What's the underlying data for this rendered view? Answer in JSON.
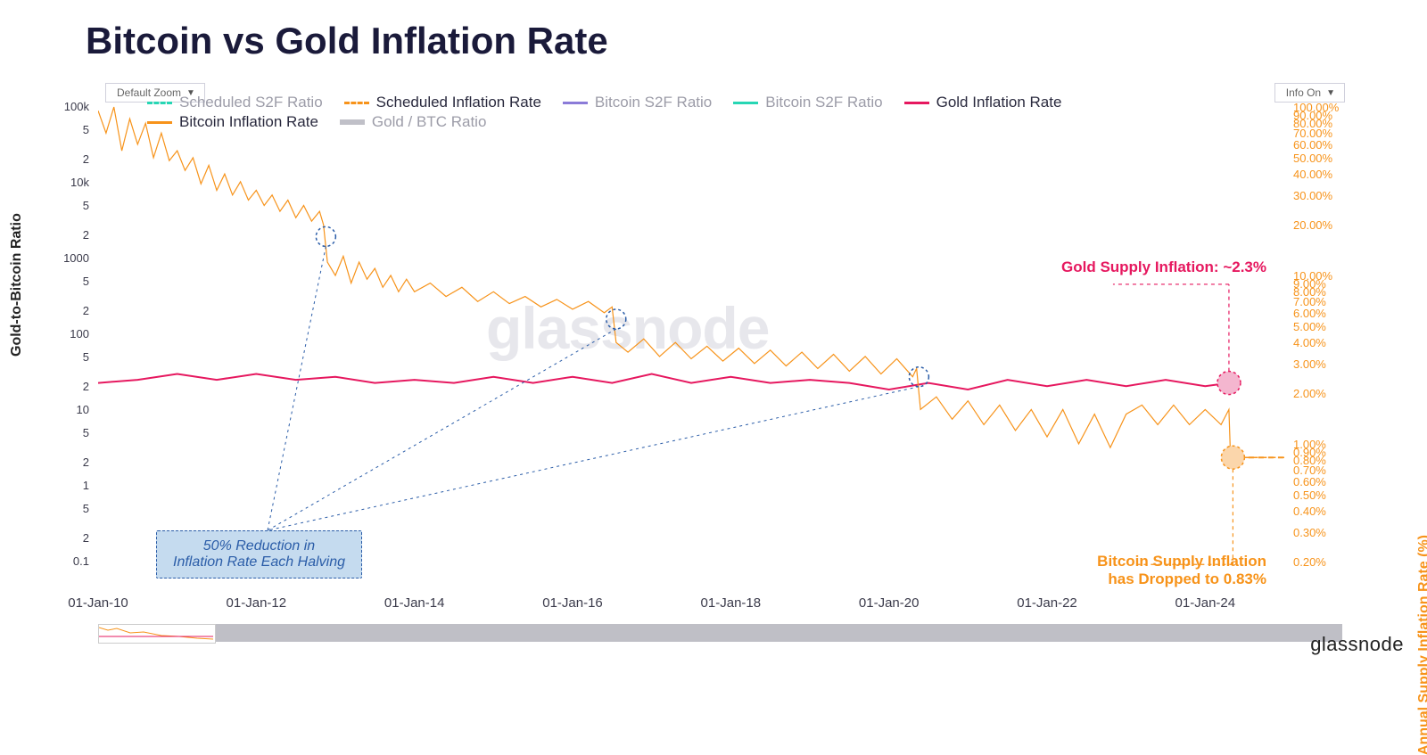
{
  "title": "Bitcoin vs Gold Inflation Rate",
  "controls": {
    "zoom_label": "Default Zoom",
    "info_label": "Info On"
  },
  "axes": {
    "left_label": "Gold-to-Bitcoin Ratio",
    "right_label": "Annual Supply Inflation Rate (%)",
    "left_scale": "log",
    "right_scale": "log",
    "left_ticks": [
      {
        "v": 100000,
        "t": "100k"
      },
      {
        "v": 50000,
        "t": "5"
      },
      {
        "v": 20000,
        "t": "2"
      },
      {
        "v": 10000,
        "t": "10k"
      },
      {
        "v": 5000,
        "t": "5"
      },
      {
        "v": 2000,
        "t": "2"
      },
      {
        "v": 1000,
        "t": "1000"
      },
      {
        "v": 500,
        "t": "5"
      },
      {
        "v": 200,
        "t": "2"
      },
      {
        "v": 100,
        "t": "100"
      },
      {
        "v": 50,
        "t": "5"
      },
      {
        "v": 20,
        "t": "2"
      },
      {
        "v": 10,
        "t": "10"
      },
      {
        "v": 5,
        "t": "5"
      },
      {
        "v": 2,
        "t": "2"
      },
      {
        "v": 1,
        "t": "1"
      },
      {
        "v": 0.5,
        "t": "5"
      },
      {
        "v": 0.2,
        "t": "2"
      },
      {
        "v": 0.1,
        "t": "0.1"
      }
    ],
    "right_ticks": [
      {
        "v": 100,
        "t": "100.00%"
      },
      {
        "v": 90,
        "t": "90.00%"
      },
      {
        "v": 80,
        "t": "80.00%"
      },
      {
        "v": 70,
        "t": "70.00%"
      },
      {
        "v": 60,
        "t": "60.00%"
      },
      {
        "v": 50,
        "t": "50.00%"
      },
      {
        "v": 40,
        "t": "40.00%"
      },
      {
        "v": 30,
        "t": "30.00%"
      },
      {
        "v": 20,
        "t": "20.00%"
      },
      {
        "v": 10,
        "t": "10.00%"
      },
      {
        "v": 9,
        "t": "9.00%"
      },
      {
        "v": 8,
        "t": "8.00%"
      },
      {
        "v": 7,
        "t": "7.00%"
      },
      {
        "v": 6,
        "t": "6.00%"
      },
      {
        "v": 5,
        "t": "5.00%"
      },
      {
        "v": 4,
        "t": "4.00%"
      },
      {
        "v": 3,
        "t": "3.00%"
      },
      {
        "v": 2,
        "t": "2.00%"
      },
      {
        "v": 1,
        "t": "1.00%"
      },
      {
        "v": 0.9,
        "t": "0.90%"
      },
      {
        "v": 0.8,
        "t": "0.80%"
      },
      {
        "v": 0.7,
        "t": "0.70%"
      },
      {
        "v": 0.6,
        "t": "0.60%"
      },
      {
        "v": 0.5,
        "t": "0.50%"
      },
      {
        "v": 0.4,
        "t": "0.40%"
      },
      {
        "v": 0.3,
        "t": "0.30%"
      },
      {
        "v": 0.2,
        "t": "0.20%"
      }
    ],
    "x_ticks": [
      "01-Jan-10",
      "01-Jan-12",
      "01-Jan-14",
      "01-Jan-16",
      "01-Jan-18",
      "01-Jan-20",
      "01-Jan-22",
      "01-Jan-24"
    ],
    "x_domain": [
      2010.0,
      2025.0
    ],
    "left_domain": [
      0.1,
      100000
    ],
    "right_domain": [
      0.2,
      100
    ]
  },
  "legend": [
    {
      "label": "Scheduled S2F Ratio",
      "color": "#27d6b4",
      "style": "dashed",
      "active": false
    },
    {
      "label": "Scheduled Inflation Rate",
      "color": "#f7931a",
      "style": "dashed",
      "active": true
    },
    {
      "label": "Bitcoin S2F Ratio",
      "color": "#8b7bd8",
      "style": "solid",
      "active": false
    },
    {
      "label": "Bitcoin S2F Ratio",
      "color": "#27d6b4",
      "style": "solid",
      "active": false
    },
    {
      "label": "Gold Inflation Rate",
      "color": "#e6185f",
      "style": "solid",
      "active": true
    },
    {
      "label": "Bitcoin Inflation Rate",
      "color": "#f7931a",
      "style": "solid",
      "active": true
    },
    {
      "label": "Gold / BTC Ratio",
      "color": "#c0c0c8",
      "style": "thick",
      "active": false
    }
  ],
  "series": {
    "gold_inflation": {
      "color": "#e6185f",
      "width": 2,
      "points": [
        [
          2010.0,
          2.3
        ],
        [
          2010.5,
          2.4
        ],
        [
          2011.0,
          2.6
        ],
        [
          2011.5,
          2.4
        ],
        [
          2012.0,
          2.6
        ],
        [
          2012.5,
          2.4
        ],
        [
          2013.0,
          2.5
        ],
        [
          2013.5,
          2.3
        ],
        [
          2014.0,
          2.4
        ],
        [
          2014.5,
          2.3
        ],
        [
          2015.0,
          2.5
        ],
        [
          2015.5,
          2.3
        ],
        [
          2016.0,
          2.5
        ],
        [
          2016.5,
          2.3
        ],
        [
          2017.0,
          2.6
        ],
        [
          2017.5,
          2.3
        ],
        [
          2018.0,
          2.5
        ],
        [
          2018.5,
          2.3
        ],
        [
          2019.0,
          2.4
        ],
        [
          2019.5,
          2.3
        ],
        [
          2020.0,
          2.1
        ],
        [
          2020.5,
          2.3
        ],
        [
          2021.0,
          2.1
        ],
        [
          2021.5,
          2.4
        ],
        [
          2022.0,
          2.2
        ],
        [
          2022.5,
          2.4
        ],
        [
          2023.0,
          2.2
        ],
        [
          2023.5,
          2.4
        ],
        [
          2024.0,
          2.2
        ],
        [
          2024.3,
          2.3
        ]
      ]
    },
    "btc_inflation": {
      "color": "#f7931a",
      "width": 1.2,
      "points": [
        [
          2010.0,
          95
        ],
        [
          2010.1,
          70
        ],
        [
          2010.2,
          100
        ],
        [
          2010.3,
          55
        ],
        [
          2010.4,
          85
        ],
        [
          2010.5,
          60
        ],
        [
          2010.6,
          80
        ],
        [
          2010.7,
          50
        ],
        [
          2010.8,
          70
        ],
        [
          2010.9,
          48
        ],
        [
          2011.0,
          55
        ],
        [
          2011.1,
          42
        ],
        [
          2011.2,
          50
        ],
        [
          2011.3,
          35
        ],
        [
          2011.4,
          45
        ],
        [
          2011.5,
          32
        ],
        [
          2011.6,
          40
        ],
        [
          2011.7,
          30
        ],
        [
          2011.8,
          36
        ],
        [
          2011.9,
          28
        ],
        [
          2012.0,
          32
        ],
        [
          2012.1,
          26
        ],
        [
          2012.2,
          30
        ],
        [
          2012.3,
          24
        ],
        [
          2012.4,
          28
        ],
        [
          2012.5,
          22
        ],
        [
          2012.6,
          26
        ],
        [
          2012.7,
          21
        ],
        [
          2012.8,
          24
        ],
        [
          2012.85,
          20
        ],
        [
          2012.9,
          12
        ],
        [
          2013.0,
          10
        ],
        [
          2013.1,
          13
        ],
        [
          2013.2,
          9
        ],
        [
          2013.3,
          12
        ],
        [
          2013.4,
          9.5
        ],
        [
          2013.5,
          11
        ],
        [
          2013.6,
          8.5
        ],
        [
          2013.7,
          10
        ],
        [
          2013.8,
          8
        ],
        [
          2013.9,
          9.5
        ],
        [
          2014.0,
          8
        ],
        [
          2014.2,
          9
        ],
        [
          2014.4,
          7.5
        ],
        [
          2014.6,
          8.5
        ],
        [
          2014.8,
          7
        ],
        [
          2015.0,
          8
        ],
        [
          2015.2,
          6.8
        ],
        [
          2015.4,
          7.5
        ],
        [
          2015.6,
          6.5
        ],
        [
          2015.8,
          7.2
        ],
        [
          2016.0,
          6.3
        ],
        [
          2016.2,
          7
        ],
        [
          2016.4,
          6
        ],
        [
          2016.5,
          6.5
        ],
        [
          2016.55,
          4
        ],
        [
          2016.7,
          3.5
        ],
        [
          2016.9,
          4.2
        ],
        [
          2017.1,
          3.3
        ],
        [
          2017.3,
          4
        ],
        [
          2017.5,
          3.2
        ],
        [
          2017.7,
          3.8
        ],
        [
          2017.9,
          3.1
        ],
        [
          2018.1,
          3.7
        ],
        [
          2018.3,
          3
        ],
        [
          2018.5,
          3.6
        ],
        [
          2018.7,
          2.9
        ],
        [
          2018.9,
          3.5
        ],
        [
          2019.1,
          2.8
        ],
        [
          2019.3,
          3.4
        ],
        [
          2019.5,
          2.7
        ],
        [
          2019.7,
          3.3
        ],
        [
          2019.9,
          2.6
        ],
        [
          2020.1,
          3.2
        ],
        [
          2020.3,
          2.5
        ],
        [
          2020.35,
          2.8
        ],
        [
          2020.4,
          1.6
        ],
        [
          2020.6,
          1.9
        ],
        [
          2020.8,
          1.4
        ],
        [
          2021.0,
          1.8
        ],
        [
          2021.2,
          1.3
        ],
        [
          2021.4,
          1.7
        ],
        [
          2021.6,
          1.2
        ],
        [
          2021.8,
          1.6
        ],
        [
          2022.0,
          1.1
        ],
        [
          2022.2,
          1.6
        ],
        [
          2022.4,
          1.0
        ],
        [
          2022.6,
          1.5
        ],
        [
          2022.8,
          0.95
        ],
        [
          2023.0,
          1.5
        ],
        [
          2023.2,
          1.7
        ],
        [
          2023.4,
          1.3
        ],
        [
          2023.6,
          1.7
        ],
        [
          2023.8,
          1.3
        ],
        [
          2024.0,
          1.6
        ],
        [
          2024.2,
          1.3
        ],
        [
          2024.3,
          1.6
        ],
        [
          2024.32,
          0.83
        ],
        [
          2024.5,
          0.83
        ]
      ]
    },
    "scheduled_inflation": {
      "color": "#f7931a",
      "width": 2,
      "dash": "6,5",
      "points": [
        [
          2024.3,
          0.83
        ],
        [
          2025.0,
          0.83
        ]
      ]
    }
  },
  "halvings": {
    "marker_color": "#2b5da8",
    "circles": [
      [
        2012.88,
        17
      ],
      [
        2016.55,
        5.5
      ],
      [
        2020.38,
        2.5
      ]
    ],
    "box_text_1": "50% Reduction in",
    "box_text_2": "Inflation Rate Each Halving"
  },
  "callouts": {
    "gold": "Gold Supply Inflation: ~2.3%",
    "btc_1": "Bitcoin Supply Inflation",
    "btc_2": "has Dropped to 0.83%",
    "gold_marker_color": "#f4b6cf",
    "btc_marker_color": "#fbd6ab"
  },
  "colors": {
    "orange": "#f7931a",
    "pink": "#e6185f",
    "blue": "#2b5da8",
    "grey_text": "#9c9ca8",
    "active_text": "#2a2a3e"
  },
  "watermark": "glassnode",
  "brand": "glassnode"
}
